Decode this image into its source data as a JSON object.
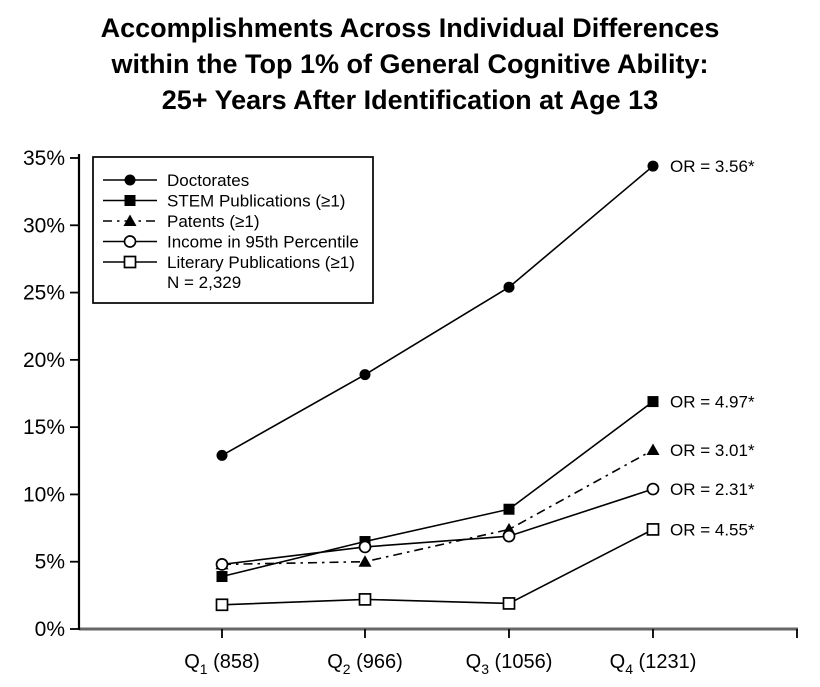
{
  "title": {
    "line1": "Accomplishments Across Individual Differences",
    "line2": "within the Top 1% of General Cognitive Ability:",
    "line3": "25+ Years After Identification at Age 13"
  },
  "chart_data": {
    "type": "line",
    "title": "Accomplishments Across Individual Differences within the Top 1% of General Cognitive Ability: 25+ Years After Identification at Age 13",
    "categories": [
      {
        "base": "Q",
        "sub": "1",
        "count": " (858)",
        "plain": "Q1 (858)"
      },
      {
        "base": "Q",
        "sub": "2",
        "count": " (966)",
        "plain": "Q2 (966)"
      },
      {
        "base": "Q",
        "sub": "3",
        "count": " (1056)",
        "plain": "Q3 (1056)"
      },
      {
        "base": "Q",
        "sub": "4",
        "count": " (1231)",
        "plain": "Q4 (1231)"
      }
    ],
    "ylim": [
      0,
      35
    ],
    "ytick_step": 5,
    "ytick_labels": [
      "0%",
      "5%",
      "10%",
      "15%",
      "20%",
      "25%",
      "30%",
      "35%"
    ],
    "grid": false,
    "series": [
      {
        "name": "Doctorates",
        "marker": "filled-circle",
        "line_style": "solid",
        "values": [
          12.9,
          18.9,
          25.4,
          34.4
        ],
        "or_label": "OR = 3.56*"
      },
      {
        "name": "STEM Publications (≥1)",
        "marker": "filled-square",
        "line_style": "solid",
        "values": [
          3.9,
          6.5,
          8.9,
          16.9
        ],
        "or_label": "OR = 4.97*"
      },
      {
        "name": "Patents (≥1)",
        "marker": "filled-triangle",
        "line_style": "dashdot",
        "values": [
          4.8,
          5.0,
          7.4,
          13.3
        ],
        "or_label": "OR = 3.01*"
      },
      {
        "name": "Income in 95th Percentile",
        "marker": "open-circle",
        "line_style": "solid",
        "values": [
          4.8,
          6.1,
          6.9,
          10.4
        ],
        "or_label": "OR = 2.31*"
      },
      {
        "name": "Literary Publications (≥1)",
        "marker": "open-square",
        "line_style": "solid",
        "values": [
          1.8,
          2.2,
          1.9,
          7.4
        ],
        "or_label": "OR = 4.55*"
      }
    ],
    "legend": {
      "position": "top-left",
      "note": "N = 2,329"
    },
    "colors": {
      "foreground": "#000000",
      "background": "#ffffff",
      "x_axis": "#666666",
      "marker_open_fill": "#ffffff"
    }
  }
}
